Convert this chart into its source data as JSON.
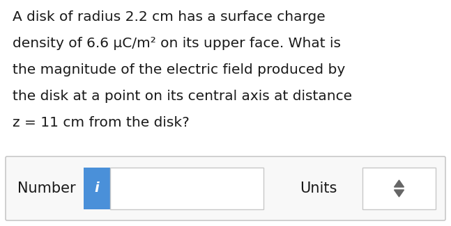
{
  "background_color": "#ffffff",
  "text_lines": [
    "A disk of radius 2.2 cm has a surface charge",
    "density of 6.6 μC/m² on its upper face. What is",
    "the magnitude of the electric field produced by",
    "the disk at a point on its central axis at distance",
    "z = 11 cm from the disk?"
  ],
  "text_fontsize": 14.5,
  "text_color": "#1a1a1a",
  "box_border_color": "#c8c8c8",
  "box_bg_color": "#ffffff",
  "number_label": "Number",
  "number_label_fontsize": 15,
  "units_label": "Units",
  "units_label_fontsize": 15,
  "info_button_color": "#4a90d9",
  "info_button_text": "i",
  "info_button_text_color": "#ffffff",
  "info_button_fontsize": 14,
  "input_box_color": "#ffffff",
  "input_box_border": "#c8c8c8",
  "units_box_color": "#ffffff",
  "units_box_border": "#c8c8c8",
  "arrow_color": "#666666"
}
